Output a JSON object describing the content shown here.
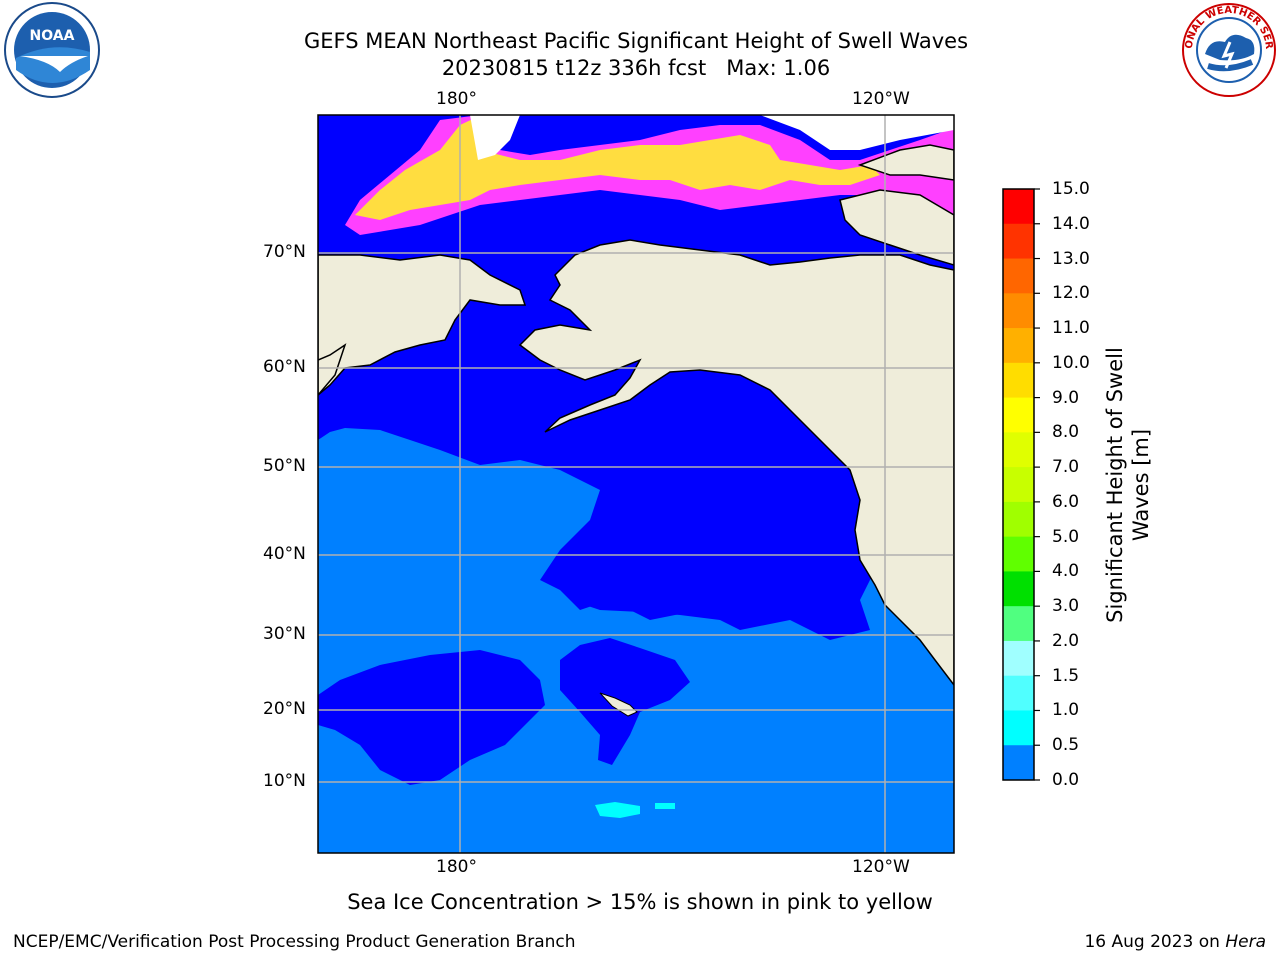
{
  "title": "GEFS MEAN Northeast Pacific Significant Height of Swell Waves",
  "subtitle_run": "20230815 t12z 336h fcst",
  "subtitle_max": "Max: 1.06",
  "map": {
    "lon_top_labels": [
      "180°",
      "120°W"
    ],
    "lon_bottom_labels": [
      "180°",
      "120°W"
    ],
    "lat_labels": [
      "70°N",
      "60°N",
      "50°N",
      "40°N",
      "30°N",
      "20°N",
      "10°N"
    ],
    "colors": {
      "ocean_low": "#0000ff",
      "ocean_mid": "#0080ff",
      "swell_cyan": "#00ffff",
      "land": "#efedda",
      "ice_pink": "#ff40ff",
      "ice_yellow": "#ffdd40",
      "grid": "#b0b0b0"
    }
  },
  "colorbar": {
    "label_line1": "Significant Height of Swell",
    "label_line2": "Waves [m]",
    "ticks": [
      "15.0",
      "14.0",
      "13.0",
      "12.0",
      "11.0",
      "10.0",
      "9.0",
      "8.0",
      "7.0",
      "6.0",
      "5.0",
      "4.0",
      "3.0",
      "2.0",
      "1.5",
      "1.0",
      "0.5",
      "0.0"
    ],
    "colors": [
      "#ff0000",
      "#ff3300",
      "#ff6600",
      "#ff8c00",
      "#ffb000",
      "#ffdd00",
      "#ffff00",
      "#e0ff00",
      "#c8ff00",
      "#a0ff00",
      "#60ff00",
      "#00e000",
      "#50ff80",
      "#a0ffff",
      "#50ffff",
      "#00ffff",
      "#0080ff",
      "#0000ff"
    ]
  },
  "sea_ice_note": "Sea Ice Concentration > 15% is shown in pink to yellow",
  "credit": "NCEP/EMC/Verification Post Processing Product Generation Branch",
  "date_text": "16 Aug 2023 on",
  "host": "Hera",
  "logos": {
    "noaa": "NOAA",
    "nws": "NATIONAL WEATHER SERVICE"
  }
}
